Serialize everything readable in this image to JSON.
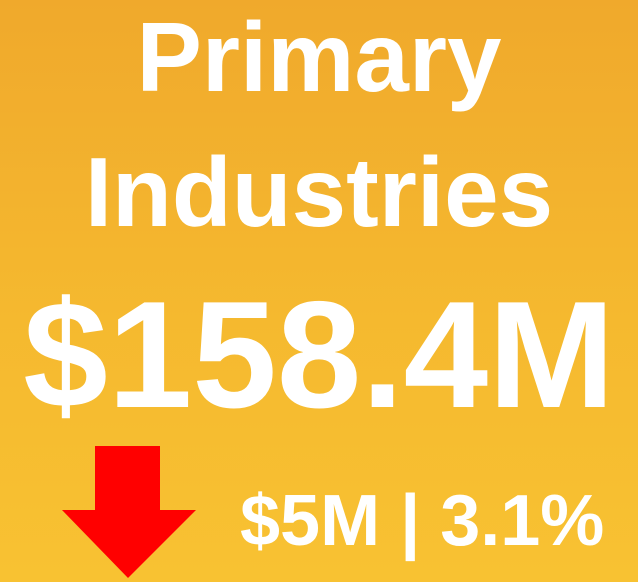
{
  "title": "Primary Industries",
  "value": "$158.4M",
  "change": "$5M | 3.1%"
}
